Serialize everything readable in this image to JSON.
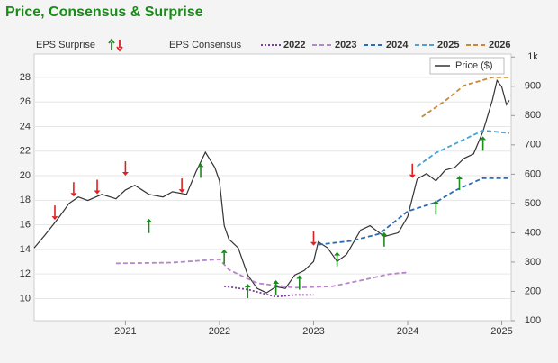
{
  "chart_data": {
    "type": "line",
    "title": "Price, Consensus & Surprise",
    "legend": {
      "surprise_label": "EPS Surprise",
      "consensus_label": "EPS Consensus"
    },
    "xlim": [
      2020.03,
      2025.1
    ],
    "xticks": [
      2021,
      2022,
      2023,
      2024,
      2025
    ],
    "ylim": [
      8.2,
      29.9
    ],
    "yticks": [
      10,
      12,
      14,
      16,
      18,
      20,
      22,
      24,
      26,
      28
    ],
    "y2lim": [
      100,
      1010
    ],
    "y2ticks": [
      100,
      200,
      300,
      400,
      500,
      600,
      700,
      800,
      900,
      {
        "value": 1000,
        "label": "1k"
      }
    ],
    "grid": true,
    "series": [
      {
        "name": "Price ($)",
        "color": "#333333",
        "axis": "y2",
        "dash": "none",
        "x": [
          2020.03,
          2020.15,
          2020.3,
          2020.4,
          2020.5,
          2020.6,
          2020.75,
          2020.9,
          2021.0,
          2021.1,
          2021.25,
          2021.4,
          2021.5,
          2021.65,
          2021.75,
          2021.85,
          2021.95,
          2022.0,
          2022.05,
          2022.1,
          2022.2,
          2022.3,
          2022.4,
          2022.5,
          2022.6,
          2022.7,
          2022.8,
          2022.9,
          2023.0,
          2023.05,
          2023.15,
          2023.25,
          2023.35,
          2023.5,
          2023.6,
          2023.75,
          2023.9,
          2024.0,
          2024.1,
          2024.2,
          2024.3,
          2024.4,
          2024.5,
          2024.6,
          2024.7,
          2024.8,
          2024.9,
          2024.95,
          2025.0,
          2025.05,
          2025.08
        ],
        "values": [
          348,
          394,
          455,
          500,
          522,
          510,
          531,
          516,
          546,
          562,
          531,
          522,
          540,
          531,
          608,
          675,
          623,
          577,
          424,
          378,
          348,
          256,
          210,
          195,
          216,
          210,
          256,
          271,
          302,
          369,
          348,
          302,
          326,
          409,
          424,
          387,
          400,
          455,
          583,
          602,
          577,
          614,
          623,
          654,
          669,
          745,
          852,
          920,
          898,
          837,
          852
        ]
      },
      {
        "name": "2022",
        "color": "#7b3f9e",
        "dash": "2,2",
        "x": [
          2022.05,
          2022.3,
          2022.6,
          2022.8,
          2023.0
        ],
        "values": [
          11.0,
          10.74,
          10.15,
          10.3,
          10.3
        ]
      },
      {
        "name": "2023",
        "color": "#b884cc",
        "dash": "5,3",
        "x": [
          2020.9,
          2021.5,
          2022.0,
          2022.1,
          2022.4,
          2022.8,
          2023.2,
          2023.5,
          2023.8,
          2024.0
        ],
        "values": [
          12.86,
          12.93,
          13.2,
          12.35,
          11.25,
          10.88,
          11.0,
          11.47,
          11.98,
          12.13
        ]
      },
      {
        "name": "2024",
        "color": "#2e6bb5",
        "dash": "5,3",
        "x": [
          2023.05,
          2023.4,
          2023.7,
          2024.0,
          2024.3,
          2024.5,
          2024.8,
          2025.08
        ],
        "values": [
          14.39,
          14.69,
          15.27,
          17.1,
          17.83,
          18.78,
          19.8,
          19.8
        ]
      },
      {
        "name": "2025",
        "color": "#44a3d8",
        "dash": "5,3",
        "x": [
          2024.1,
          2024.3,
          2024.5,
          2024.8,
          2025.08
        ],
        "values": [
          20.76,
          21.86,
          22.58,
          23.68,
          23.46
        ]
      },
      {
        "name": "2026",
        "color": "#c8893a",
        "dash": "5,3",
        "x": [
          2024.15,
          2024.4,
          2024.6,
          2024.9,
          2025.08
        ],
        "values": [
          24.78,
          26.1,
          27.34,
          28.0,
          28.0
        ]
      }
    ],
    "surprises": {
      "up_color": "#1f8a1f",
      "down_color": "#e02020",
      "x": [
        2020.25,
        2020.45,
        2020.7,
        2021.0,
        2021.25,
        2021.6,
        2021.8,
        2022.05,
        2022.3,
        2022.6,
        2022.85,
        2023.0,
        2023.25,
        2023.75,
        2024.05,
        2024.3,
        2024.55,
        2024.8
      ],
      "values": [
        16.4,
        18.3,
        18.5,
        20.0,
        16.5,
        18.6,
        21.0,
        14.0,
        11.2,
        11.5,
        11.9,
        14.3,
        13.8,
        15.4,
        19.8,
        18.0,
        20.0,
        23.2
      ],
      "up": [
        false,
        false,
        false,
        false,
        true,
        false,
        true,
        true,
        true,
        true,
        true,
        false,
        true,
        true,
        false,
        true,
        true,
        true
      ]
    }
  }
}
